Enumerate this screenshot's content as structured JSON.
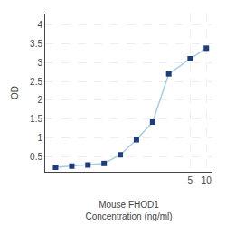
{
  "chart_data": {
    "type": "line",
    "x": [
      0.0156,
      0.0313,
      0.0625,
      0.125,
      0.25,
      0.5,
      1.0,
      2.0,
      5.0,
      10.0
    ],
    "series": [
      {
        "type": "line",
        "color": "#aacce8",
        "values": [
          0.22,
          0.25,
          0.28,
          0.32,
          0.55,
          0.95,
          1.42,
          2.7,
          3.1,
          3.38
        ]
      },
      {
        "type": "scatter",
        "color": "#1f3d7a",
        "marker": "square",
        "values": [
          0.22,
          0.25,
          0.28,
          0.32,
          0.55,
          0.95,
          1.42,
          2.7,
          3.1,
          3.38
        ]
      }
    ],
    "xlabel": "Mouse FHOD1\nConcentration (ng/ml)",
    "ylabel": "OD",
    "log": "x",
    "xlim": [
      0.01,
      13
    ],
    "xticks": [
      5,
      10
    ],
    "ylim": [
      0.1,
      4.3
    ],
    "yticks": [
      0.5,
      1.0,
      1.5,
      2.0,
      2.5,
      3.0,
      3.5,
      4.0
    ],
    "grid": true
  }
}
